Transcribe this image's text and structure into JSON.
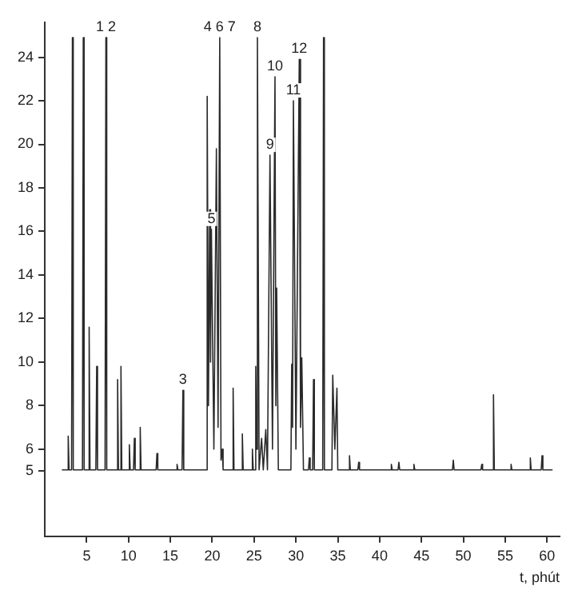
{
  "chart_data": {
    "type": "line",
    "xlabel": "t, phút",
    "color": "#2a2a2a",
    "marker": "none",
    "line_style": "solid",
    "grid": false,
    "legend": false,
    "xlim": [
      0,
      61.5
    ],
    "xticks": [
      5,
      10,
      15,
      20,
      25,
      30,
      35,
      40,
      45,
      50,
      55,
      60
    ],
    "ylim": [
      2,
      25.6
    ],
    "yticks": [
      5,
      6,
      8,
      10,
      12,
      14,
      16,
      18,
      20,
      22,
      24
    ],
    "x": [
      2.1,
      2.7,
      2.8,
      2.9,
      3.2,
      3.3,
      3.4,
      4.5,
      4.6,
      4.7,
      5.2,
      5.3,
      5.4,
      6.1,
      6.2,
      6.3,
      7.2,
      7.3,
      7.4,
      8.6,
      8.7,
      8.8,
      9.0,
      9.1,
      9.2,
      10.0,
      10.1,
      10.2,
      10.6,
      10.7,
      10.8,
      11.3,
      11.4,
      11.5,
      13.3,
      13.4,
      13.5,
      15.7,
      15.8,
      15.9,
      16.4,
      16.5,
      16.6,
      19.3,
      19.4,
      19.55,
      19.7,
      19.8,
      19.9,
      20.2,
      20.5,
      20.7,
      20.9,
      21.05,
      21.2,
      21.3,
      22.4,
      22.5,
      22.6,
      23.5,
      23.6,
      23.7,
      24.7,
      24.8,
      24.9,
      25.1,
      25.2,
      25.3,
      25.4,
      25.6,
      25.9,
      26.1,
      26.4,
      26.6,
      26.9,
      27.2,
      27.5,
      27.6,
      27.7,
      27.9,
      29.4,
      29.5,
      29.6,
      29.7,
      30.0,
      30.4,
      30.55,
      30.7,
      30.9,
      31.5,
      31.6,
      31.7,
      32.0,
      32.1,
      32.2,
      33.2,
      33.3,
      33.4,
      34.3,
      34.4,
      34.65,
      34.9,
      35.0,
      36.3,
      36.4,
      36.5,
      37.4,
      37.5,
      37.6,
      41.3,
      41.4,
      41.5,
      42.2,
      42.3,
      42.4,
      44.0,
      44.1,
      44.2,
      48.7,
      48.8,
      48.9,
      52.1,
      52.2,
      52.3,
      53.5,
      53.6,
      53.7,
      55.6,
      55.7,
      55.8,
      57.9,
      58.0,
      58.1,
      59.3,
      59.4,
      59.5,
      60.6
    ],
    "values": [
      5.05,
      5.05,
      6.6,
      5.05,
      5.05,
      24.9,
      5.05,
      5.05,
      24.9,
      5.05,
      5.05,
      11.6,
      5.05,
      5.05,
      9.8,
      5.05,
      5.05,
      24.9,
      5.05,
      5.05,
      9.2,
      5.05,
      5.05,
      9.8,
      5.05,
      5.05,
      6.2,
      5.05,
      5.05,
      6.5,
      5.05,
      5.05,
      7.0,
      5.05,
      5.05,
      5.8,
      5.05,
      5.05,
      5.3,
      5.05,
      5.05,
      8.7,
      5.05,
      5.05,
      22.2,
      8.0,
      17.0,
      10.0,
      16.1,
      6.0,
      19.8,
      7.0,
      24.9,
      5.5,
      6.0,
      5.05,
      5.05,
      8.8,
      5.05,
      5.05,
      6.7,
      5.05,
      5.05,
      6.0,
      5.05,
      5.05,
      9.8,
      6.0,
      24.9,
      5.05,
      6.5,
      5.05,
      6.9,
      5.05,
      19.5,
      6.0,
      23.1,
      8.0,
      13.4,
      5.05,
      5.05,
      9.9,
      7.0,
      22.0,
      6.0,
      23.9,
      7.0,
      10.2,
      5.05,
      5.05,
      5.6,
      5.05,
      5.05,
      9.2,
      5.05,
      5.05,
      24.9,
      5.05,
      5.05,
      9.4,
      6.0,
      8.8,
      5.05,
      5.05,
      5.7,
      5.05,
      5.05,
      5.4,
      5.05,
      5.05,
      5.3,
      5.05,
      5.05,
      5.4,
      5.05,
      5.05,
      5.3,
      5.05,
      5.05,
      5.5,
      5.05,
      5.05,
      5.3,
      5.05,
      5.05,
      8.5,
      5.05,
      5.05,
      5.3,
      5.05,
      5.05,
      5.6,
      5.05,
      5.05,
      5.7,
      5.05,
      5.05
    ],
    "annotations": [
      {
        "text": "1 2",
        "x": 7.3,
        "y": 24.9
      },
      {
        "text": "3",
        "x": 16.5,
        "y": 8.7
      },
      {
        "text": "4 6 7",
        "x": 20.9,
        "y": 24.9
      },
      {
        "text": "5",
        "x": 19.9,
        "y": 16.1
      },
      {
        "text": "8",
        "x": 25.4,
        "y": 24.9
      },
      {
        "text": "9",
        "x": 26.9,
        "y": 19.5
      },
      {
        "text": "10",
        "x": 27.5,
        "y": 23.1
      },
      {
        "text": "11",
        "x": 29.7,
        "y": 22.0
      },
      {
        "text": "12",
        "x": 30.4,
        "y": 23.9
      }
    ]
  }
}
